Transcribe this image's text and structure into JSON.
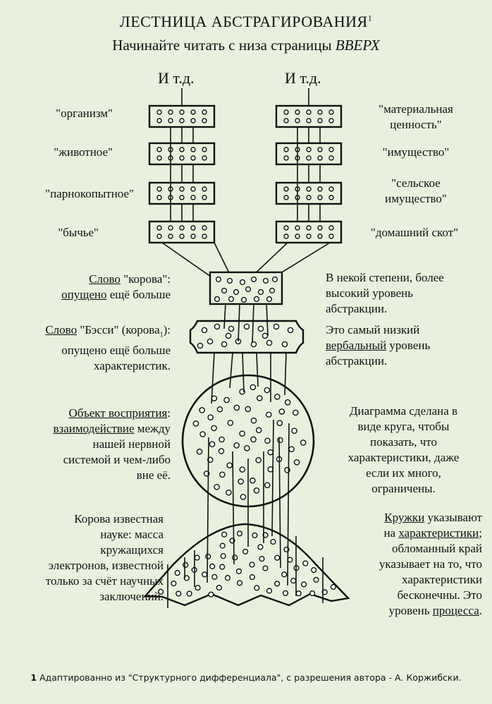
{
  "title": "ЛЕСТНИЦА АБСТРАГИРОВАНИЯ",
  "title_sup": "1",
  "subtitle_prefix": "Начинайте читать с низа страницы ",
  "subtitle_emph": "ВВЕРХ",
  "etc_left": "И т.д.",
  "etc_right": "И т.д.",
  "left_ladder": [
    "\"организм\"",
    "\"животное\"",
    "\"парнокопытное\"",
    "\"бычье\""
  ],
  "right_ladder": {
    "material_1": "\"материальная",
    "material_2": "ценность\"",
    "property": "\"имущество\"",
    "farm_1": "\"сельское",
    "farm_2": "имущество\"",
    "cattle": "\"домашний скот\""
  },
  "cow_word": {
    "w1": "Слово",
    "w2": " \"корова\":",
    "w3": "опущено",
    "w4": " ещё больше"
  },
  "bessie": {
    "w1": "Слово",
    "w2": " \"Бэсси\" (корова",
    "sub": "1",
    "w3": "):",
    "line2": "опущено ещё больше",
    "line3": "характеристик."
  },
  "higher_level": [
    "В некой степени, более",
    "высокий уровень",
    "абстракции."
  ],
  "lowest": {
    "l1": "Это самый низкий",
    "l2a": "вербальный",
    "l2b": " уровень",
    "l3": "абстракции."
  },
  "object": {
    "l1a": "Объект восприятия",
    "l1b": ":",
    "l2a": "взаимодействие",
    "l2b": " между",
    "l3": "нашей нервной",
    "l4": "системой и чем-либо",
    "l5": "вне её."
  },
  "circle_note": [
    "Диаграмма сделана в",
    "виде круга, чтобы",
    "показать, что",
    "характеристики, даже",
    "если их много,",
    "ограничены."
  ],
  "science": [
    "Корова известная",
    "науке: масса",
    "кружащихся",
    "электронов, известной",
    "только за счёт научных",
    "заключений."
  ],
  "circles": {
    "l1a": "Кружки",
    "l1b": " указывают",
    "l2a": "на ",
    "l2b": "характеристики",
    "l2c": ";",
    "l3": "обломанный край",
    "l4": "указывает на то, что",
    "l5": "характеристики",
    "l6": "бесконечны. Это",
    "l7a": "уровень ",
    "l7b": "процесса",
    "l7c": "."
  },
  "footnote": {
    "num": "1",
    "text": " Адаптированно из \"Структурного дифференциала\", с разрешения автора - А. Коржибски."
  }
}
